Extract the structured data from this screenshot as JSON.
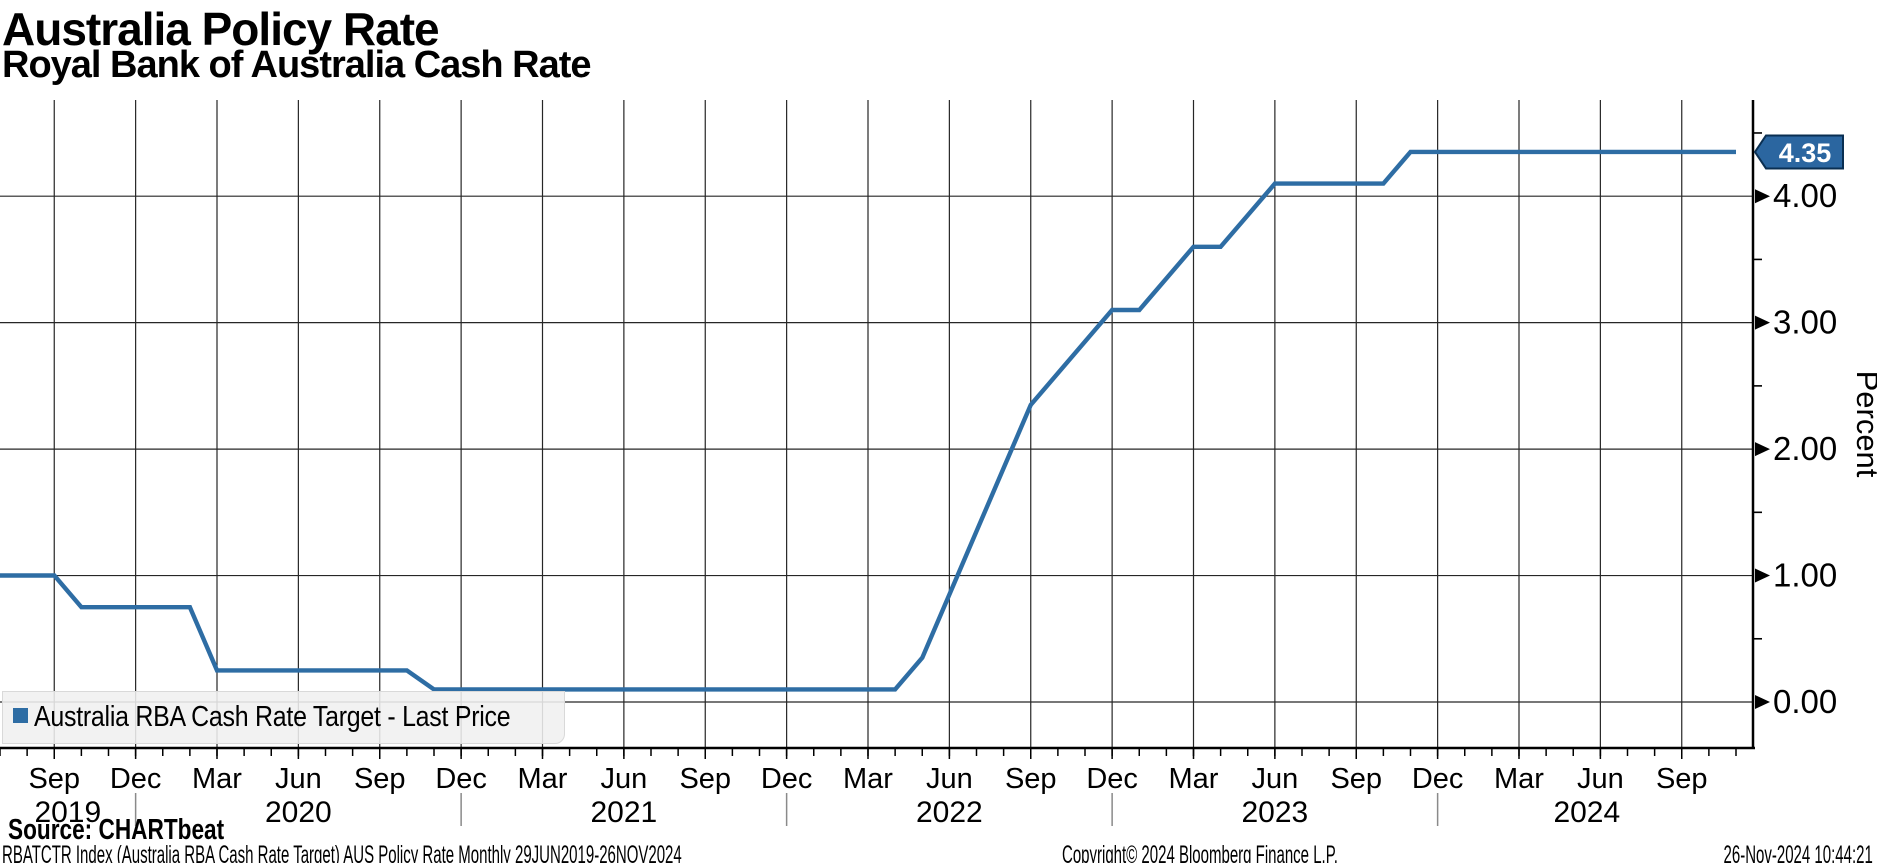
{
  "header": {
    "title": "Australia Policy Rate",
    "subtitle": "Royal Bank of Australia Cash Rate"
  },
  "legend": {
    "label": "Australia RBA Cash Rate Target - Last Price"
  },
  "colors": {
    "line": "#2E6DA4",
    "badge_fill": "#2B66A0",
    "badge_border": "#0A2F52",
    "badge_text": "#FFFFFF",
    "grid": "#262626",
    "axis": "#000000",
    "year_separator": "#8a8a8a",
    "legend_bg": "#F0F0F0"
  },
  "chart_data": {
    "type": "line",
    "title": "Australia Policy Rate",
    "subtitle": "Royal Bank of Australia Cash Rate",
    "series_name": "Australia RBA Cash Rate Target - Last Price",
    "ylabel": "Percent",
    "ylim": [
      0,
      4.75
    ],
    "grid": true,
    "legend_position": "bottom-left",
    "last_price": 4.35,
    "last_price_label": "4.35",
    "y_ticks": [
      {
        "value": 4,
        "label": "4.00"
      },
      {
        "value": 3,
        "label": "3.00"
      },
      {
        "value": 2,
        "label": "2.00"
      },
      {
        "value": 1,
        "label": "1.00"
      },
      {
        "value": 0,
        "label": "0.00"
      }
    ],
    "y_minor_ticks": [
      4.5,
      3.5,
      2.5,
      1.5,
      0.5
    ],
    "month_names": {
      "03": "Mar",
      "06": "Jun",
      "09": "Sep",
      "12": "Dec"
    },
    "year_labels": [
      "2019",
      "2020",
      "2021",
      "2022",
      "2023",
      "2024"
    ],
    "x": [
      "2019-07",
      "2019-08",
      "2019-09",
      "2019-10",
      "2019-11",
      "2019-12",
      "2020-01",
      "2020-02",
      "2020-03",
      "2020-04",
      "2020-05",
      "2020-06",
      "2020-07",
      "2020-08",
      "2020-09",
      "2020-10",
      "2020-11",
      "2020-12",
      "2021-01",
      "2021-02",
      "2021-03",
      "2021-04",
      "2021-05",
      "2021-06",
      "2021-07",
      "2021-08",
      "2021-09",
      "2021-10",
      "2021-11",
      "2021-12",
      "2022-01",
      "2022-02",
      "2022-03",
      "2022-04",
      "2022-05",
      "2022-06",
      "2022-07",
      "2022-08",
      "2022-09",
      "2022-10",
      "2022-11",
      "2022-12",
      "2023-01",
      "2023-02",
      "2023-03",
      "2023-04",
      "2023-05",
      "2023-06",
      "2023-07",
      "2023-08",
      "2023-09",
      "2023-10",
      "2023-11",
      "2023-12",
      "2024-01",
      "2024-02",
      "2024-03",
      "2024-04",
      "2024-05",
      "2024-06",
      "2024-07",
      "2024-08",
      "2024-09",
      "2024-10",
      "2024-11"
    ],
    "values": [
      1.0,
      1.0,
      1.0,
      0.75,
      0.75,
      0.75,
      0.75,
      0.75,
      0.25,
      0.25,
      0.25,
      0.25,
      0.25,
      0.25,
      0.25,
      0.25,
      0.1,
      0.1,
      0.1,
      0.1,
      0.1,
      0.1,
      0.1,
      0.1,
      0.1,
      0.1,
      0.1,
      0.1,
      0.1,
      0.1,
      0.1,
      0.1,
      0.1,
      0.1,
      0.35,
      0.85,
      1.35,
      1.85,
      2.35,
      2.6,
      2.85,
      3.1,
      3.1,
      3.35,
      3.6,
      3.6,
      3.85,
      4.1,
      4.1,
      4.1,
      4.1,
      4.1,
      4.35,
      4.35,
      4.35,
      4.35,
      4.35,
      4.35,
      4.35,
      4.35,
      4.35,
      4.35,
      4.35,
      4.35,
      4.35
    ]
  },
  "footer": {
    "source": "Source: CHARTbeat",
    "description": "RBATCTR Index (Australia RBA Cash Rate Target) AUS Policy Rate  Monthly 29JUN2019-26NOV2024",
    "copyright": "Copyright© 2024 Bloomberg Finance L.P.",
    "timestamp": "26-Nov-2024 10:44:21"
  }
}
